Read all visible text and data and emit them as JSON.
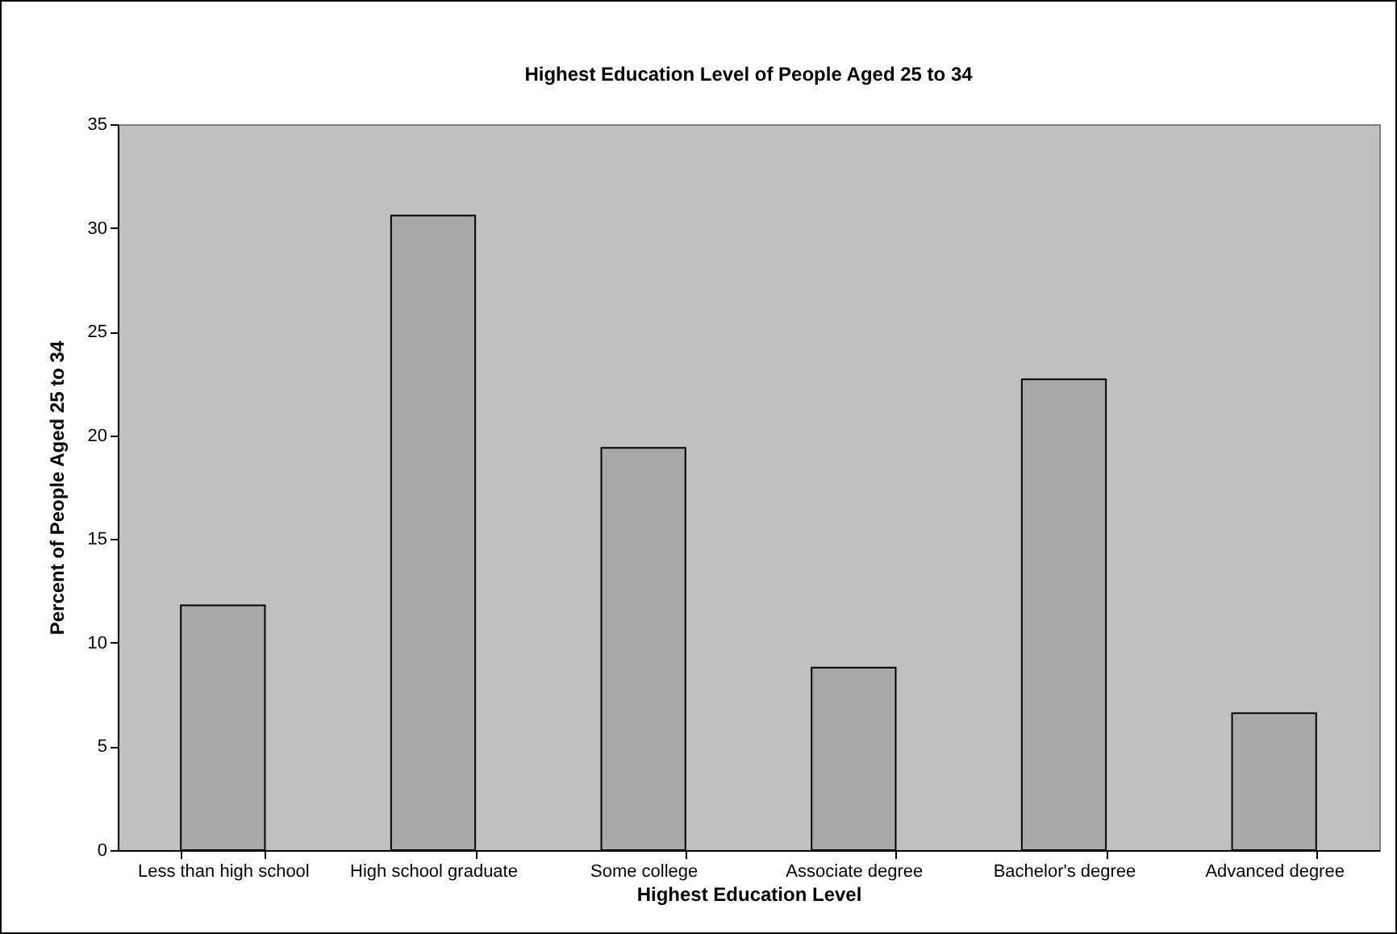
{
  "chart_data": {
    "type": "bar",
    "title": "Highest Education Level of People Aged 25 to 34",
    "xlabel": "Highest Education Level",
    "ylabel": "Percent of People Aged 25 to 34",
    "categories": [
      "Less than high school",
      "High school graduate",
      "Some college",
      "Associate degree",
      "Bachelor's degree",
      "Advanced degree"
    ],
    "values": [
      11.8,
      30.6,
      19.4,
      8.8,
      22.7,
      6.6
    ],
    "color": "#a9a9a9",
    "ylim": [
      0,
      35
    ],
    "yticks": [
      0,
      5,
      10,
      15,
      20,
      25,
      30,
      35
    ],
    "grid": false
  }
}
